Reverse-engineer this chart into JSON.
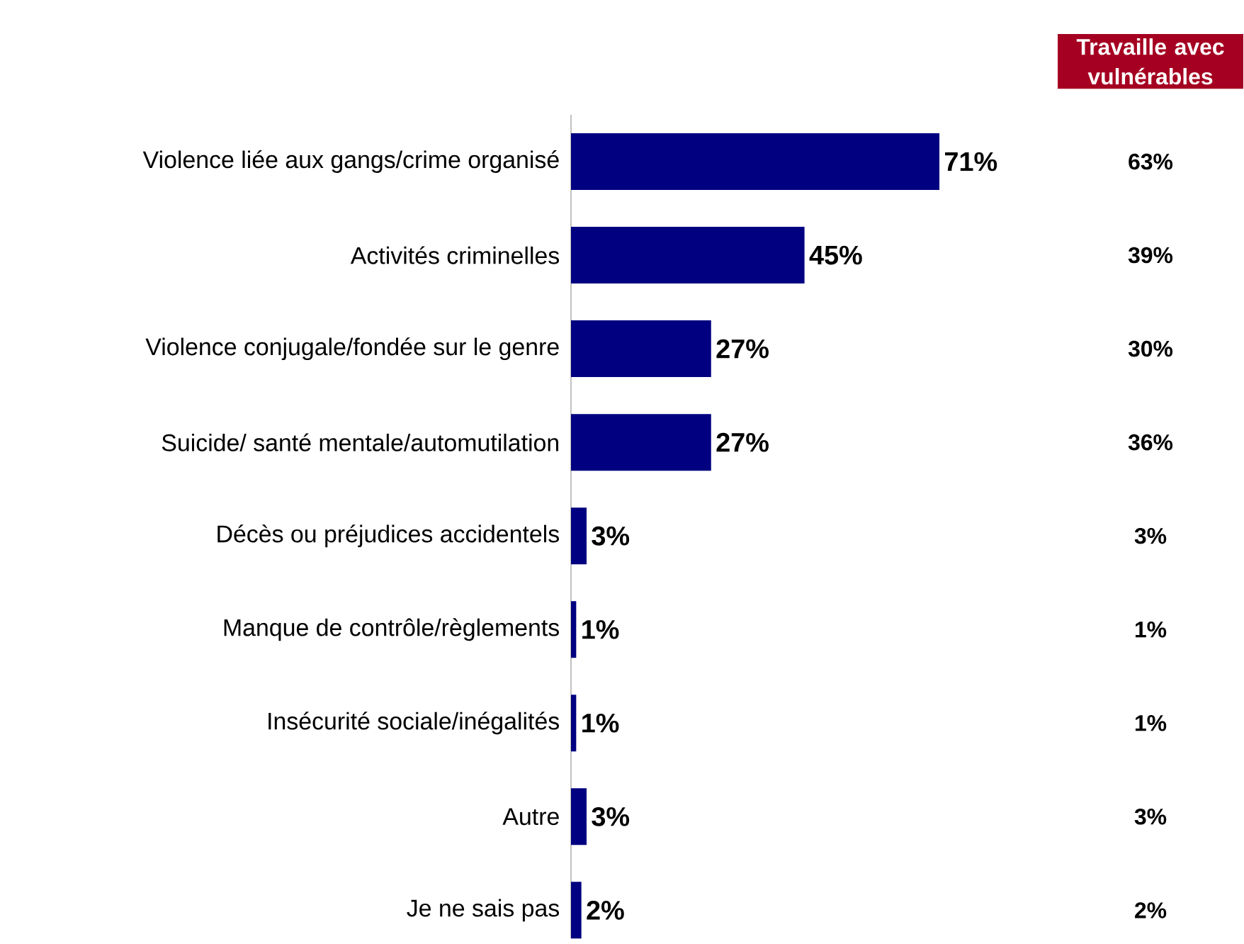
{
  "chart_data": {
    "type": "bar",
    "orientation": "horizontal",
    "color": "#000080",
    "categories": [
      "Violence liée aux gangs/crime organisé",
      "Activités criminelles",
      "Violence conjugale/fondée sur le genre",
      "Suicide/ santé mentale/automutilation",
      "Décès ou préjudices accidentels",
      "Manque de contrôle/règlements",
      "Insécurité sociale/inégalités",
      "Autre",
      "Je ne sais pas"
    ],
    "values": [
      71,
      45,
      27,
      27,
      3,
      1,
      1,
      3,
      2
    ],
    "value_labels": [
      "71%",
      "45%",
      "27%",
      "27%",
      "3%",
      "1%",
      "1%",
      "3%",
      "2%"
    ],
    "annotations": [
      "Travaille avec vulnérables",
      "63%",
      "39%",
      "30%",
      "36%",
      "3%",
      "1%",
      "1%",
      "3%",
      "2%"
    ]
  }
}
